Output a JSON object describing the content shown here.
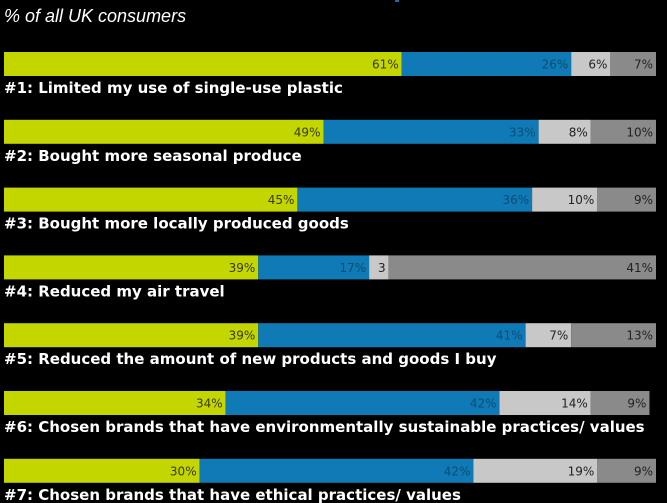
{
  "subtitle": "% of all UK consumers",
  "chart_data": {
    "type": "bar",
    "orientation": "horizontal",
    "stacked": true,
    "subtitle": "% of all UK consumers",
    "xlim": [
      0,
      100
    ],
    "colors": [
      "#c3d600",
      "#0f7ab5",
      "#c8c8c8",
      "#8a8a8a"
    ],
    "label_colors": [
      "#3a3a00",
      "#0a4d75",
      "#222222",
      "#222222"
    ],
    "rows": [
      {
        "label": "#1: Limited my use of single-use plastic",
        "values": [
          61,
          26,
          6,
          7
        ],
        "labels": [
          "61%",
          "26%",
          "6%",
          "7%"
        ]
      },
      {
        "label": "#2: Bought more seasonal produce",
        "values": [
          49,
          33,
          8,
          10
        ],
        "labels": [
          "49%",
          "33%",
          "8%",
          "10%"
        ]
      },
      {
        "label": "#3: Bought more locally produced goods",
        "values": [
          45,
          36,
          10,
          9
        ],
        "labels": [
          "45%",
          "36%",
          "10%",
          "9%"
        ]
      },
      {
        "label": "#4: Reduced my air travel",
        "values": [
          39,
          17,
          3,
          41
        ],
        "labels": [
          "39%",
          "17%",
          "3",
          "41%"
        ]
      },
      {
        "label": "#5: Reduced the amount of new products and goods I buy",
        "values": [
          39,
          41,
          7,
          13
        ],
        "labels": [
          "39%",
          "41%",
          "7%",
          "13%"
        ]
      },
      {
        "label": "#6: Chosen brands that have environmentally sustainable practices/ values",
        "values": [
          34,
          42,
          14,
          9
        ],
        "labels": [
          "34%",
          "42%",
          "14%",
          "9%"
        ]
      },
      {
        "label": "#7: Chosen brands that have ethical practices/ values",
        "values": [
          30,
          42,
          19,
          9
        ],
        "labels": [
          "30%",
          "42%",
          "19%",
          "9%"
        ]
      }
    ]
  }
}
